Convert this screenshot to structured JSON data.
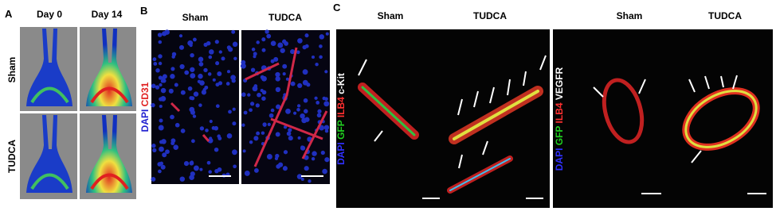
{
  "panels": [
    {
      "label": "A",
      "columns": [
        "Day 0",
        "Day 14"
      ],
      "rows": [
        "Sham",
        "TUDCA"
      ]
    },
    {
      "label": "B",
      "columns": [
        "Sham",
        "TUDCA"
      ],
      "stain": [
        "DAPI",
        "CD31"
      ]
    },
    {
      "label": "C",
      "columns": [
        "Sham",
        "TUDCA"
      ],
      "stain": [
        "DAPI",
        "GFP",
        "ILB4",
        "c-Kit"
      ]
    },
    {
      "columns": [
        "Sham",
        "TUDCA"
      ],
      "stain": [
        "DAPI",
        "GFP",
        "ILB4",
        "VEGFR"
      ]
    }
  ]
}
